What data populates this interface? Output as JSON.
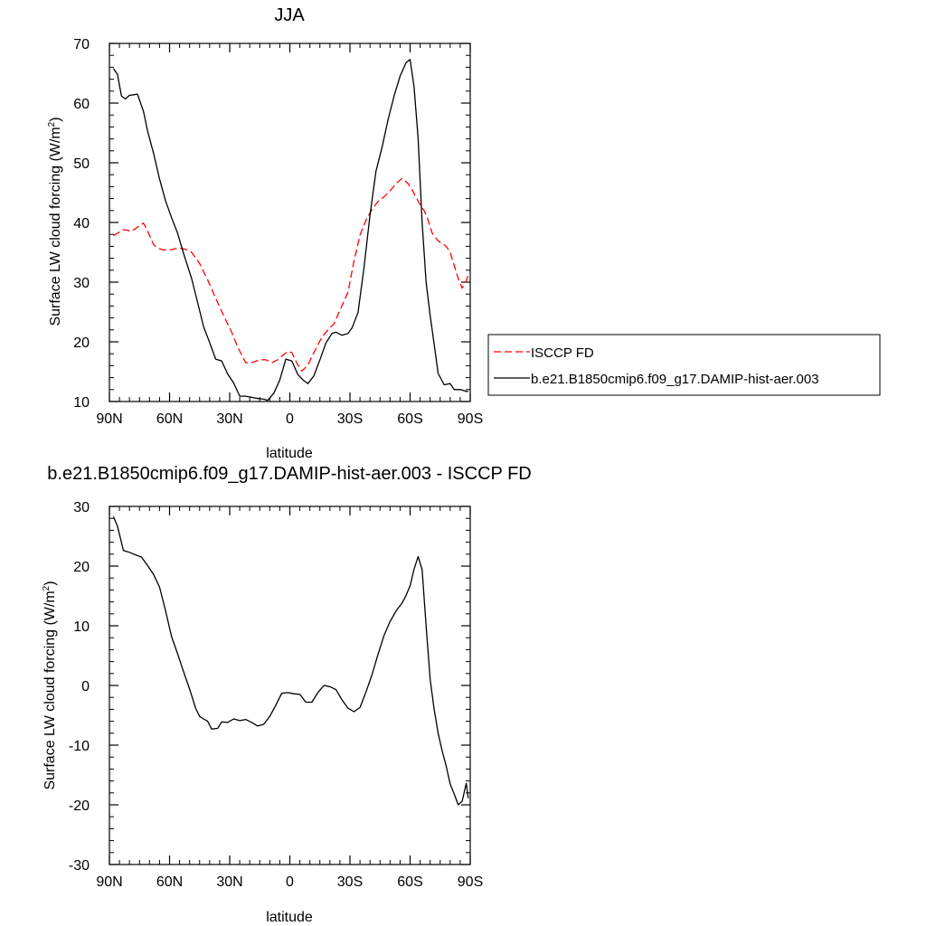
{
  "chart_data": [
    {
      "type": "line",
      "title": "JJA",
      "xlabel": "latitude",
      "ylabel_main": "Surface LW cloud forcing (W/m",
      "ylabel_sup": "2",
      "ylabel_close": ")",
      "xlim": [
        -90,
        90
      ],
      "ylim": [
        10,
        70
      ],
      "xticks": [
        -90,
        -60,
        -30,
        0,
        30,
        60,
        90
      ],
      "xtick_labels": [
        "90N",
        "60N",
        "30N",
        "0",
        "30S",
        "60S",
        "90S"
      ],
      "yticks": [
        10,
        20,
        30,
        40,
        50,
        60,
        70
      ],
      "ytick_labels": [
        "10",
        "20",
        "30",
        "40",
        "50",
        "60",
        "70"
      ],
      "grid": false,
      "legend_position": "right",
      "series": [
        {
          "name": "ISCCP FD",
          "color": "#ff0000",
          "dash": "dashed",
          "x": [
            -88,
            -86,
            -83,
            -81,
            -79,
            -76,
            -73,
            -71,
            -68,
            -66,
            -63,
            -60,
            -57,
            -55,
            -52,
            -49,
            -45,
            -41,
            -37,
            -33,
            -29,
            -26,
            -22,
            -19,
            -15,
            -12,
            -9,
            -6,
            -4,
            -1,
            1,
            4,
            6,
            9,
            12,
            16,
            19,
            22,
            25,
            29,
            32,
            35,
            38,
            41,
            44,
            47,
            50,
            53,
            56,
            59,
            61,
            63,
            65,
            67,
            69,
            71,
            74,
            76,
            78,
            80,
            82,
            84,
            86,
            88,
            89
          ],
          "y": [
            37.8,
            38.2,
            38.8,
            38.7,
            38.5,
            39.2,
            39.9,
            38.6,
            36.3,
            35.7,
            35.4,
            35.4,
            35.6,
            35.7,
            35.5,
            35.0,
            33.1,
            30.4,
            27.3,
            24.4,
            21.6,
            19.1,
            16.5,
            16.5,
            17.0,
            17.0,
            16.5,
            17.0,
            17.6,
            18.4,
            18.2,
            16.1,
            15.1,
            16.1,
            18.2,
            20.8,
            22.0,
            23.0,
            25.3,
            28.3,
            33.5,
            37.9,
            40.4,
            42.2,
            43.5,
            44.3,
            45.3,
            46.5,
            47.4,
            46.5,
            45.5,
            44.2,
            43.0,
            42.0,
            40.4,
            38.2,
            36.9,
            36.5,
            36.0,
            35.0,
            32.8,
            30.6,
            29.0,
            30.2,
            31.2
          ]
        },
        {
          "name": "b.e21.B1850cmip6.f09_g17.DAMIP-hist-aer.003",
          "color": "#000000",
          "dash": "solid",
          "x": [
            -88,
            -86,
            -84,
            -82,
            -80,
            -78,
            -76,
            -73,
            -71,
            -68,
            -65,
            -62,
            -59,
            -56,
            -53,
            -49,
            -46,
            -43,
            -40,
            -37,
            -34,
            -31,
            -28,
            -25,
            -22,
            -19,
            -16,
            -13,
            -11,
            -8,
            -5,
            -2,
            1,
            4,
            7,
            9,
            12,
            15,
            18,
            21,
            23,
            26,
            29,
            31,
            34,
            37,
            40,
            43,
            46,
            49,
            52,
            55,
            58,
            60,
            62,
            64,
            66,
            68,
            70,
            72,
            74,
            77,
            80,
            82,
            85,
            88,
            89
          ],
          "y": [
            65.8,
            64.8,
            61.2,
            60.7,
            61.3,
            61.4,
            61.5,
            58.6,
            55.4,
            51.6,
            47.3,
            43.6,
            40.8,
            38.2,
            34.8,
            30.6,
            26.6,
            22.5,
            19.9,
            17.1,
            16.8,
            14.6,
            13.1,
            10.9,
            10.9,
            10.7,
            10.5,
            10.4,
            10.2,
            11.4,
            13.6,
            17.1,
            16.8,
            14.5,
            13.5,
            13.0,
            14.3,
            17.0,
            19.8,
            21.4,
            21.6,
            21.1,
            21.4,
            22.3,
            24.9,
            32.4,
            41.3,
            48.6,
            52.6,
            57.2,
            61.2,
            64.5,
            66.8,
            67.3,
            62.7,
            54.0,
            40.0,
            30.0,
            24.4,
            19.6,
            14.7,
            12.8,
            13.0,
            12.0,
            12.0,
            11.7,
            11.7
          ]
        }
      ]
    },
    {
      "type": "line",
      "title": "b.e21.B1850cmip6.f09_g17.DAMIP-hist-aer.003 - ISCCP FD",
      "xlabel": "latitude",
      "ylabel_main": "Surface LW cloud forcing (W/m",
      "ylabel_sup": "2",
      "ylabel_close": ")",
      "xlim": [
        -90,
        90
      ],
      "ylim": [
        -30,
        30
      ],
      "xticks": [
        -90,
        -60,
        -30,
        0,
        30,
        60,
        90
      ],
      "xtick_labels": [
        "90N",
        "60N",
        "30N",
        "0",
        "30S",
        "60S",
        "90S"
      ],
      "yticks": [
        -30,
        -20,
        -10,
        0,
        10,
        20,
        30
      ],
      "ytick_labels": [
        "-30",
        "-20",
        "-10",
        "0",
        "10",
        "20",
        "30"
      ],
      "grid": false,
      "series": [
        {
          "color": "#000000",
          "dash": "solid",
          "x": [
            -88,
            -86,
            -83,
            -80,
            -77,
            -74,
            -71,
            -68,
            -65,
            -62,
            -59,
            -56,
            -53,
            -50,
            -47,
            -45,
            -43,
            -41,
            -39,
            -36,
            -34,
            -31,
            -28,
            -25,
            -22,
            -19,
            -16,
            -13,
            -10,
            -7,
            -4,
            -1,
            2,
            5,
            8,
            11,
            14,
            17,
            20,
            23,
            26,
            29,
            32,
            35,
            38,
            41,
            44,
            47,
            50,
            53,
            56,
            58,
            60,
            62,
            64,
            66,
            68,
            70,
            72,
            74,
            76,
            78,
            80,
            82,
            84,
            86,
            88,
            89
          ],
          "y": [
            28.3,
            26.7,
            22.6,
            22.3,
            21.9,
            21.5,
            20.1,
            18.6,
            16.5,
            12.5,
            8.2,
            5.3,
            2.3,
            -0.6,
            -3.8,
            -5.2,
            -5.6,
            -6.0,
            -7.3,
            -7.2,
            -6.1,
            -6.2,
            -5.6,
            -5.9,
            -5.7,
            -6.2,
            -6.8,
            -6.5,
            -5.2,
            -3.3,
            -1.3,
            -1.2,
            -1.4,
            -1.5,
            -2.8,
            -2.8,
            -1.2,
            0.0,
            -0.2,
            -0.7,
            -2.4,
            -3.8,
            -4.4,
            -3.7,
            -1.1,
            1.8,
            5.2,
            8.4,
            10.7,
            12.5,
            13.8,
            15.1,
            16.7,
            19.5,
            21.6,
            19.4,
            10.0,
            1.0,
            -4.0,
            -8.0,
            -11.0,
            -13.5,
            -16.5,
            -18.2,
            -20.0,
            -19.4,
            -16.4,
            -18.9
          ]
        }
      ]
    }
  ]
}
